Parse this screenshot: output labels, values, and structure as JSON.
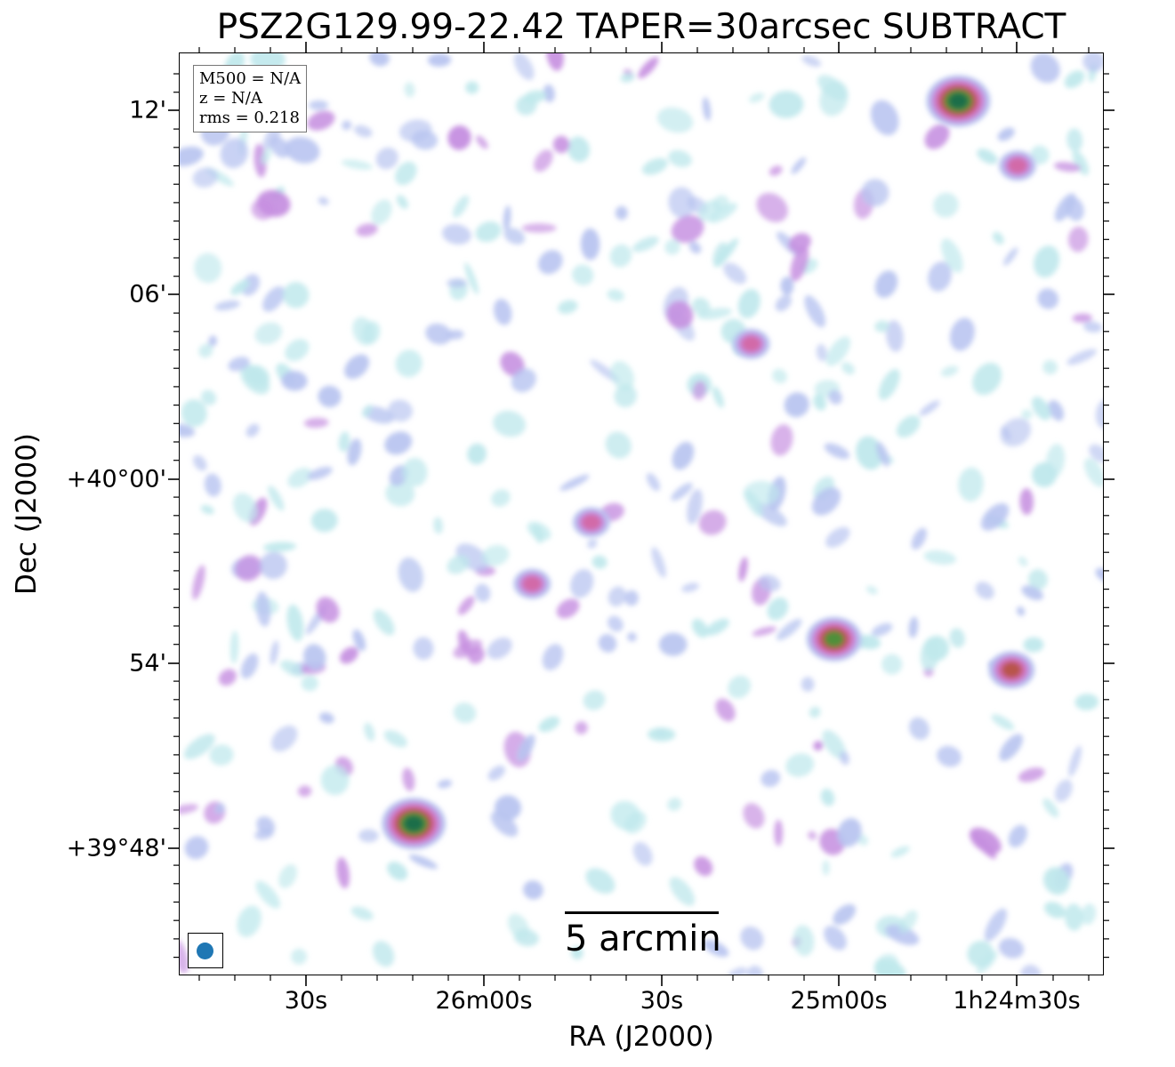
{
  "figure": {
    "title": "PSZ2G129.99-22.42 TAPER=30arcsec SUBTRACT",
    "xlabel": "RA (J2000)",
    "ylabel": "Dec (J2000)",
    "x_ticks": [
      "30s",
      "26m00s",
      "30s",
      "25m00s",
      "1h24m30s"
    ],
    "y_ticks": [
      "12'",
      "06'",
      "+40°00'",
      "54'",
      "+39°48'"
    ]
  },
  "info": {
    "mass": "M500 = N/A",
    "redshift": "z = N/A",
    "rms": "rms = 0.218"
  },
  "scalebar": {
    "label": "5 arcmin"
  },
  "beam": {
    "color": "#1f77b4"
  },
  "colormap": [
    "#bfe8ec",
    "#b8c4f0",
    "#c58ee0",
    "#d26aa8",
    "#b8544c",
    "#4f8f3a",
    "#1e6e48"
  ],
  "sources": [
    {
      "ra": "1h24m40s",
      "dec": "+40°12.3'",
      "peak": 6
    },
    {
      "ra": "26m12s",
      "dec": "+39°48.8'",
      "peak": 6
    },
    {
      "ra": "25m01s",
      "dec": "+39°54.8'",
      "peak": 5
    },
    {
      "ra": "1h24m31s",
      "dec": "+39°53.8'",
      "peak": 4
    },
    {
      "ra": "25m52s",
      "dec": "+39°56.6'",
      "peak": 3
    },
    {
      "ra": "25m15s",
      "dec": "+40°04.4'",
      "peak": 3
    },
    {
      "ra": "25m42s",
      "dec": "+39°58.6'",
      "peak": 3
    },
    {
      "ra": "1h24m30s",
      "dec": "+40°10.2'",
      "peak": 3
    }
  ]
}
